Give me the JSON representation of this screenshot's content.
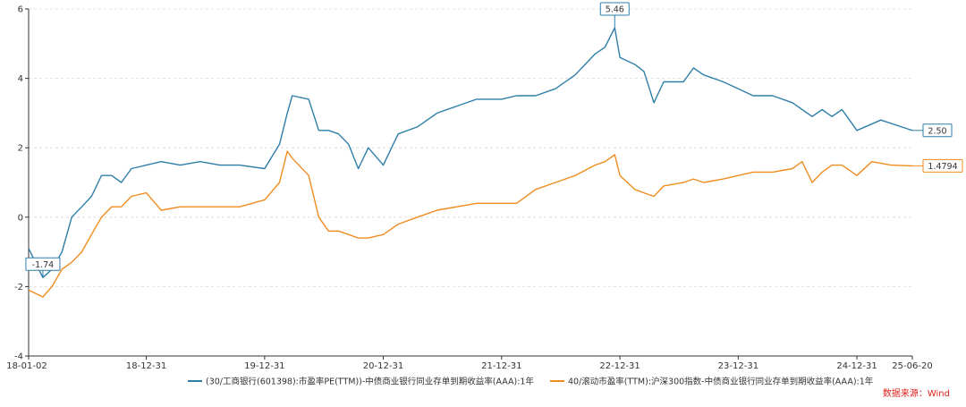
{
  "chart_data": {
    "type": "line",
    "ylim": [
      -4,
      6
    ],
    "y_ticks": [
      "-4",
      "-2",
      "0",
      "2",
      "4",
      "6"
    ],
    "x_ticks": [
      "18-01-02",
      "18-12-31",
      "19-12-31",
      "20-12-31",
      "21-12-31",
      "22-12-31",
      "23-12-31",
      "24-12-31",
      "25-06-20"
    ],
    "grid": "horizontal dashed",
    "legend_position": "bottom",
    "series": [
      {
        "name": "(30/工商银行(601398):市盈率PE(TTM))-中债商业银行同业存单到期收益率(AAA):1年",
        "color": "#2e7ea8",
        "points": [
          [
            "2018-01-02",
            -0.9
          ],
          [
            "2018-02-15",
            -1.74
          ],
          [
            "2018-03-15",
            -1.5
          ],
          [
            "2018-04-15",
            -1.0
          ],
          [
            "2018-05-15",
            0.0
          ],
          [
            "2018-06-15",
            0.3
          ],
          [
            "2018-07-15",
            0.6
          ],
          [
            "2018-08-15",
            1.2
          ],
          [
            "2018-09-15",
            1.2
          ],
          [
            "2018-10-15",
            1.0
          ],
          [
            "2018-11-15",
            1.4
          ],
          [
            "2018-12-31",
            1.5
          ],
          [
            "2019-02-15",
            1.6
          ],
          [
            "2019-04-15",
            1.5
          ],
          [
            "2019-06-15",
            1.6
          ],
          [
            "2019-08-15",
            1.5
          ],
          [
            "2019-10-15",
            1.5
          ],
          [
            "2019-12-31",
            1.4
          ],
          [
            "2020-02-15",
            2.1
          ],
          [
            "2020-03-10",
            3.0
          ],
          [
            "2020-03-25",
            3.5
          ],
          [
            "2020-05-15",
            3.4
          ],
          [
            "2020-06-15",
            2.5
          ],
          [
            "2020-07-15",
            2.5
          ],
          [
            "2020-08-15",
            2.4
          ],
          [
            "2020-09-15",
            2.1
          ],
          [
            "2020-10-15",
            1.4
          ],
          [
            "2020-11-15",
            2.0
          ],
          [
            "2020-12-31",
            1.5
          ],
          [
            "2021-02-15",
            2.4
          ],
          [
            "2021-04-15",
            2.6
          ],
          [
            "2021-06-15",
            3.0
          ],
          [
            "2021-08-15",
            3.2
          ],
          [
            "2021-10-15",
            3.4
          ],
          [
            "2021-12-31",
            3.4
          ],
          [
            "2022-02-15",
            3.5
          ],
          [
            "2022-04-15",
            3.5
          ],
          [
            "2022-06-15",
            3.7
          ],
          [
            "2022-08-15",
            4.1
          ],
          [
            "2022-10-15",
            4.7
          ],
          [
            "2022-11-15",
            4.9
          ],
          [
            "2022-12-15",
            5.46
          ],
          [
            "2022-12-31",
            4.6
          ],
          [
            "2023-02-15",
            4.4
          ],
          [
            "2023-03-15",
            4.2
          ],
          [
            "2023-04-15",
            3.3
          ],
          [
            "2023-05-15",
            3.9
          ],
          [
            "2023-07-15",
            3.9
          ],
          [
            "2023-08-15",
            4.3
          ],
          [
            "2023-09-15",
            4.1
          ],
          [
            "2023-11-15",
            3.9
          ],
          [
            "2023-12-31",
            3.7
          ],
          [
            "2024-02-15",
            3.5
          ],
          [
            "2024-04-15",
            3.5
          ],
          [
            "2024-06-15",
            3.3
          ],
          [
            "2024-08-15",
            2.9
          ],
          [
            "2024-09-15",
            3.1
          ],
          [
            "2024-10-15",
            2.9
          ],
          [
            "2024-11-15",
            3.1
          ],
          [
            "2024-12-31",
            2.5
          ],
          [
            "2025-03-15",
            2.8
          ],
          [
            "2025-06-20",
            2.5
          ]
        ],
        "last_label": "2.50",
        "callouts": [
          {
            "date": "2018-02-15",
            "label": "-1.74",
            "y": -1.74
          },
          {
            "date": "2022-12-15",
            "label": "5.46",
            "y": 5.46
          }
        ]
      },
      {
        "name": "40/滚动市盈率(TTM):沪深300指数-中债商业银行同业存单到期收益率(AAA):1年",
        "color": "#f08c1f",
        "points": [
          [
            "2018-01-02",
            -2.1
          ],
          [
            "2018-02-15",
            -2.3
          ],
          [
            "2018-03-15",
            -2.0
          ],
          [
            "2018-04-15",
            -1.5
          ],
          [
            "2018-05-15",
            -1.3
          ],
          [
            "2018-06-15",
            -1.0
          ],
          [
            "2018-07-15",
            -0.5
          ],
          [
            "2018-08-15",
            0.0
          ],
          [
            "2018-09-15",
            0.3
          ],
          [
            "2018-10-15",
            0.3
          ],
          [
            "2018-11-15",
            0.6
          ],
          [
            "2018-12-31",
            0.7
          ],
          [
            "2019-02-15",
            0.2
          ],
          [
            "2019-04-15",
            0.3
          ],
          [
            "2019-06-15",
            0.3
          ],
          [
            "2019-08-15",
            0.3
          ],
          [
            "2019-10-15",
            0.3
          ],
          [
            "2019-12-31",
            0.5
          ],
          [
            "2020-02-15",
            1.0
          ],
          [
            "2020-03-10",
            1.9
          ],
          [
            "2020-03-25",
            1.7
          ],
          [
            "2020-05-15",
            1.2
          ],
          [
            "2020-06-15",
            0.0
          ],
          [
            "2020-07-15",
            -0.4
          ],
          [
            "2020-08-15",
            -0.4
          ],
          [
            "2020-09-15",
            -0.5
          ],
          [
            "2020-10-15",
            -0.6
          ],
          [
            "2020-11-15",
            -0.6
          ],
          [
            "2020-12-31",
            -0.5
          ],
          [
            "2021-02-15",
            -0.2
          ],
          [
            "2021-04-15",
            0.0
          ],
          [
            "2021-06-15",
            0.2
          ],
          [
            "2021-08-15",
            0.3
          ],
          [
            "2021-10-15",
            0.4
          ],
          [
            "2021-12-31",
            0.4
          ],
          [
            "2022-02-15",
            0.4
          ],
          [
            "2022-04-15",
            0.8
          ],
          [
            "2022-06-15",
            1.0
          ],
          [
            "2022-08-15",
            1.2
          ],
          [
            "2022-10-15",
            1.5
          ],
          [
            "2022-11-15",
            1.6
          ],
          [
            "2022-12-15",
            1.8
          ],
          [
            "2022-12-31",
            1.2
          ],
          [
            "2023-02-15",
            0.8
          ],
          [
            "2023-03-15",
            0.7
          ],
          [
            "2023-04-15",
            0.6
          ],
          [
            "2023-05-15",
            0.9
          ],
          [
            "2023-07-15",
            1.0
          ],
          [
            "2023-08-15",
            1.1
          ],
          [
            "2023-09-15",
            1.0
          ],
          [
            "2023-11-15",
            1.1
          ],
          [
            "2023-12-31",
            1.2
          ],
          [
            "2024-02-15",
            1.3
          ],
          [
            "2024-04-15",
            1.3
          ],
          [
            "2024-06-15",
            1.4
          ],
          [
            "2024-07-15",
            1.6
          ],
          [
            "2024-08-15",
            1.0
          ],
          [
            "2024-09-15",
            1.3
          ],
          [
            "2024-10-15",
            1.5
          ],
          [
            "2024-11-15",
            1.5
          ],
          [
            "2024-12-31",
            1.2
          ],
          [
            "2025-02-15",
            1.6
          ],
          [
            "2025-04-15",
            1.5
          ],
          [
            "2025-06-20",
            1.4794
          ]
        ],
        "last_label": "1.4794",
        "callouts": []
      }
    ]
  },
  "footer": {
    "source": "数据来源：Wind"
  }
}
